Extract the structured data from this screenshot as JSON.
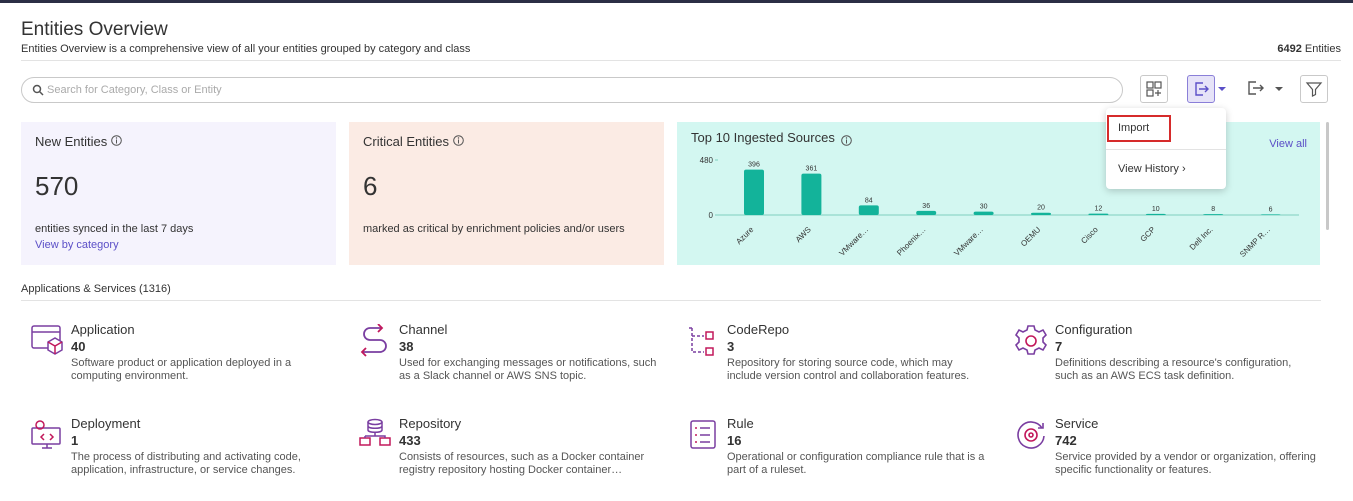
{
  "header": {
    "title": "Entities Overview",
    "subtitle": "Entities Overview is a comprehensive view of all your entities grouped by category and class",
    "total_count": 6492,
    "total_label": "Entities"
  },
  "search": {
    "placeholder": "Search for Category, Class or Entity"
  },
  "menu": {
    "items": [
      "Import",
      "View History ›"
    ]
  },
  "cards": [
    {
      "title": "New Entities",
      "value": 570,
      "caption": "entities synced in the last 7 days",
      "link": "View by category"
    },
    {
      "title": "Critical Entities",
      "value": 6,
      "caption": "marked as critical by enrichment policies and/or users"
    }
  ],
  "chart_data": {
    "type": "bar",
    "title": "Top 10 Ingested Sources",
    "link": "View all",
    "categories": [
      "Azure",
      "AWS",
      "VMware…",
      "Phoenix…",
      "VMware…",
      "OEMU",
      "Cisco",
      "GCP",
      "Dell Inc.",
      "SNMP R…"
    ],
    "values": [
      396,
      361,
      84,
      36,
      30,
      20,
      12,
      10,
      8,
      6
    ],
    "ylim": [
      0,
      480
    ],
    "yticks": [
      0,
      480
    ],
    "color": "#13b39a"
  },
  "section": {
    "title": "Applications & Services (1316)",
    "items": [
      {
        "name": "Application",
        "count": 40,
        "description": "Software product or application deployed in a computing environment."
      },
      {
        "name": "Channel",
        "count": 38,
        "description": "Used for exchanging messages or notifications, such as a Slack channel or AWS SNS topic."
      },
      {
        "name": "CodeRepo",
        "count": 3,
        "description": "Repository for storing source code, which may include version control and collaboration features."
      },
      {
        "name": "Configuration",
        "count": 7,
        "description": "Definitions describing a resource's configuration, such as an AWS ECS task definition."
      },
      {
        "name": "Deployment",
        "count": 1,
        "description": "The process of distributing and activating code, application, infrastructure, or service changes."
      },
      {
        "name": "Repository",
        "count": 433,
        "description": "Consists of resources, such as a Docker container registry repository hosting Docker container…"
      },
      {
        "name": "Rule",
        "count": 16,
        "description": "Operational or configuration compliance rule that is a part of a ruleset."
      },
      {
        "name": "Service",
        "count": 742,
        "description": "Service provided by a vendor or organization, offering specific functionality or features."
      }
    ]
  }
}
